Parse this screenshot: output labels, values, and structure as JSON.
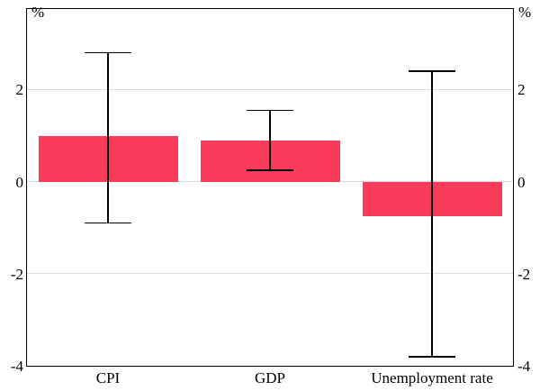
{
  "chart_data": {
    "type": "bar",
    "title": "",
    "unit_label": "%",
    "categories": [
      "CPI",
      "GDP",
      "Unemployment rate"
    ],
    "values": [
      1.0,
      0.9,
      -0.75
    ],
    "error_low": [
      -0.9,
      0.25,
      -3.8
    ],
    "error_high": [
      2.8,
      1.55,
      2.4
    ],
    "ylim": [
      -4,
      3.75
    ],
    "yticks": [
      2,
      0,
      -2,
      -4
    ],
    "grid": true,
    "legend": "none",
    "colors": {
      "bar": "#F83A5B",
      "grid": "#D8DDE3",
      "axis": "#000000",
      "error_bar": "#000000",
      "background": "#FFFFFF"
    }
  }
}
